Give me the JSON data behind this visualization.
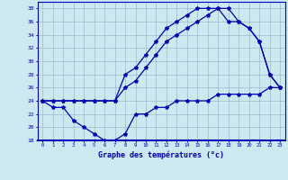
{
  "xlabel": "Graphe des températures (°c)",
  "x": [
    0,
    1,
    2,
    3,
    4,
    5,
    6,
    7,
    8,
    9,
    10,
    11,
    12,
    13,
    14,
    15,
    16,
    17,
    18,
    19,
    20,
    21,
    22,
    23
  ],
  "y_top": [
    24,
    24,
    24,
    24,
    24,
    24,
    24,
    24,
    28,
    29,
    31,
    33,
    35,
    36,
    37,
    38,
    38,
    38,
    38,
    36,
    35,
    33,
    28,
    26
  ],
  "y_mid": [
    24,
    24,
    24,
    24,
    24,
    24,
    24,
    24,
    26,
    27,
    29,
    31,
    33,
    34,
    35,
    36,
    37,
    38,
    36,
    36,
    35,
    33,
    28,
    26
  ],
  "y_bot": [
    24,
    23,
    23,
    21,
    20,
    19,
    18,
    18,
    19,
    22,
    22,
    23,
    23,
    24,
    24,
    24,
    24,
    25,
    25,
    25,
    25,
    25,
    26,
    26
  ],
  "line_color": "#0000bb",
  "bg_color": "#cce8f0",
  "grid_color": "#99bbcc",
  "ylim": [
    18,
    39
  ],
  "ytick_vals": [
    18,
    20,
    22,
    24,
    26,
    28,
    30,
    32,
    34,
    36,
    38
  ],
  "marker": "*",
  "markersize": 3,
  "linewidth": 0.9
}
